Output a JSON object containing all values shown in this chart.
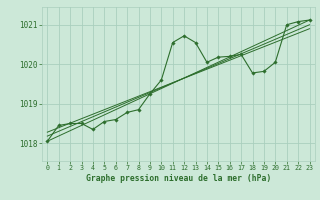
{
  "title": "Graphe pression niveau de la mer (hPa)",
  "background_color": "#cce8d8",
  "plot_bg_color": "#cce8d8",
  "line_color": "#2d6e2d",
  "grid_color": "#aacfbe",
  "x_ticks": [
    0,
    1,
    2,
    3,
    4,
    5,
    6,
    7,
    8,
    9,
    10,
    11,
    12,
    13,
    14,
    15,
    16,
    17,
    18,
    19,
    20,
    21,
    22,
    23
  ],
  "y_ticks": [
    1018,
    1019,
    1020,
    1021
  ],
  "ylim": [
    1017.55,
    1021.45
  ],
  "xlim": [
    -0.5,
    23.5
  ],
  "main_line": [
    [
      0,
      1018.05
    ],
    [
      1,
      1018.45
    ],
    [
      2,
      1018.5
    ],
    [
      3,
      1018.5
    ],
    [
      4,
      1018.35
    ],
    [
      5,
      1018.55
    ],
    [
      6,
      1018.6
    ],
    [
      7,
      1018.78
    ],
    [
      8,
      1018.85
    ],
    [
      9,
      1019.25
    ],
    [
      10,
      1019.6
    ],
    [
      11,
      1020.55
    ],
    [
      12,
      1020.72
    ],
    [
      13,
      1020.55
    ],
    [
      14,
      1020.05
    ],
    [
      15,
      1020.18
    ],
    [
      16,
      1020.2
    ],
    [
      17,
      1020.25
    ],
    [
      18,
      1019.78
    ],
    [
      19,
      1019.82
    ],
    [
      20,
      1020.05
    ],
    [
      21,
      1021.0
    ],
    [
      22,
      1021.08
    ],
    [
      23,
      1021.12
    ]
  ],
  "trend_line1": [
    [
      0,
      1018.05
    ],
    [
      23,
      1021.12
    ]
  ],
  "trend_line2": [
    [
      0,
      1018.18
    ],
    [
      23,
      1021.0
    ]
  ],
  "trend_line3": [
    [
      0,
      1018.28
    ],
    [
      23,
      1020.9
    ]
  ]
}
